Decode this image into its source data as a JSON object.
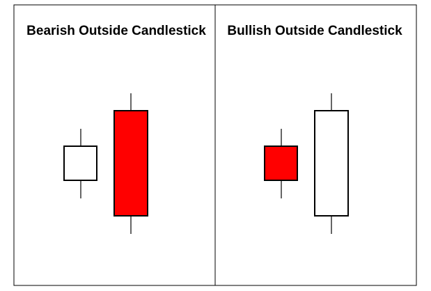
{
  "panels": [
    {
      "title": "Bearish Outside Candlestick",
      "candles": [
        {
          "kind": "small",
          "fill": "#ffffff"
        },
        {
          "kind": "large",
          "fill": "#ff0000"
        }
      ]
    },
    {
      "title": "Bullish Outside Candlestick",
      "candles": [
        {
          "kind": "small",
          "fill": "#ff0000"
        },
        {
          "kind": "large",
          "fill": "#ffffff"
        }
      ]
    }
  ],
  "colors": {
    "border": "#000000",
    "background": "#ffffff"
  }
}
